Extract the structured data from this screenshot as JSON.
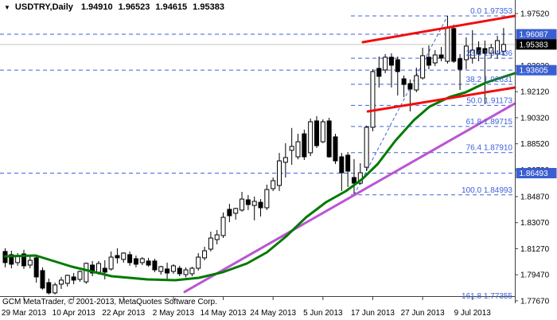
{
  "window": {
    "dropdown_icon": "▼",
    "symbol_label": "USDTRY,Daily",
    "ohlc_open": "1.94910",
    "ohlc_high": "1.96523",
    "ohlc_low": "1.94615",
    "ohlc_close": "1.95383"
  },
  "footer": {
    "copyright": "GCM MetaTrader, © 2001-2013, MetaQuotes Software Corp."
  },
  "colors": {
    "bull_body": "#FFFFFF",
    "bear_body": "#000000",
    "wick": "#000000",
    "ma_green": "#007A00",
    "trend_purple": "#BA55D3",
    "channel_red": "#F20D0D",
    "fib_blue": "#3E62D9",
    "badge_blue": "#3A5FD0",
    "badge_black": "#000000",
    "price_line_gray": "#C8C8C8",
    "axis_text": "#000000",
    "border": "#404040"
  },
  "chart_data": {
    "type": "candlestick",
    "symbol": "USDTRY",
    "timeframe": "Daily",
    "y_axis_ticks": [
      "1.97520",
      "1.95720",
      "1.93920",
      "1.92120",
      "1.90320",
      "1.88520",
      "1.86720",
      "1.84870",
      "1.83070",
      "1.81270",
      "1.79470",
      "1.77670"
    ],
    "x_axis_labels": [
      {
        "index": 3,
        "text": "29 Mar 2013"
      },
      {
        "index": 11,
        "text": "10 Apr 2013"
      },
      {
        "index": 19,
        "text": "22 Apr 2013"
      },
      {
        "index": 27,
        "text": "2 May 2013"
      },
      {
        "index": 35,
        "text": "14 May 2013"
      },
      {
        "index": 43,
        "text": "24 May 2013"
      },
      {
        "index": 51,
        "text": "5 Jun 2013"
      },
      {
        "index": 59,
        "text": "17 Jun 2013"
      },
      {
        "index": 67,
        "text": "27 Jun 2013"
      },
      {
        "index": 75,
        "text": "9 Jul 2013"
      }
    ],
    "bars": [
      [
        1.8108,
        1.813,
        1.7998,
        1.8031
      ],
      [
        1.8086,
        1.8113,
        1.7992,
        1.802
      ],
      [
        1.8031,
        1.8097,
        1.8009,
        1.8075
      ],
      [
        1.8091,
        1.8119,
        1.7987,
        1.8009
      ],
      [
        1.8014,
        1.8075,
        1.7992,
        1.8047
      ],
      [
        1.8064,
        1.8086,
        1.7893,
        1.7932
      ],
      [
        1.7976,
        1.7998,
        1.7844,
        1.7855
      ],
      [
        1.7893,
        1.7921,
        1.7811,
        1.7822
      ],
      [
        1.7822,
        1.7893,
        1.7811,
        1.7877
      ],
      [
        1.7882,
        1.7932,
        1.7849,
        1.791
      ],
      [
        1.7888,
        1.7948,
        1.7866,
        1.7943
      ],
      [
        1.7932,
        1.7959,
        1.7882,
        1.791
      ],
      [
        1.7915,
        1.7976,
        1.7899,
        1.797
      ],
      [
        1.7898,
        1.8031,
        1.7885,
        1.8026
      ],
      [
        1.8014,
        1.8042,
        1.7937,
        1.7959
      ],
      [
        1.7965,
        1.8042,
        1.7948,
        1.8025
      ],
      [
        1.7992,
        1.8047,
        1.7915,
        1.7965
      ],
      [
        1.7987,
        1.8108,
        1.7976,
        1.8069
      ],
      [
        1.808,
        1.813,
        1.8026,
        1.8064
      ],
      [
        1.8053,
        1.8102,
        1.8031,
        1.8097
      ],
      [
        1.8086,
        1.8108,
        1.8009,
        1.8031
      ],
      [
        1.8058,
        1.808,
        1.7998,
        1.802
      ],
      [
        1.8031,
        1.8069,
        1.8014,
        1.8058
      ],
      [
        1.8042,
        1.8064,
        1.8003,
        1.8014
      ],
      [
        1.8042,
        1.8058,
        1.7965,
        1.7981
      ],
      [
        1.797,
        1.8009,
        1.7948,
        1.8003
      ],
      [
        1.7987,
        1.8031,
        1.7915,
        1.7959
      ],
      [
        1.797,
        1.802,
        1.7954,
        1.8009
      ],
      [
        1.7992,
        1.8009,
        1.7937,
        1.7954
      ],
      [
        1.7948,
        1.7998,
        1.7929,
        1.7981
      ],
      [
        1.7954,
        1.8003,
        1.7937,
        1.7992
      ],
      [
        1.7992,
        1.8097,
        1.7976,
        1.8069
      ],
      [
        1.8064,
        1.8141,
        1.8047,
        1.8113
      ],
      [
        1.8124,
        1.8245,
        1.8108,
        1.8201
      ],
      [
        1.819,
        1.8256,
        1.8157,
        1.8223
      ],
      [
        1.8218,
        1.8377,
        1.8201,
        1.8344
      ],
      [
        1.8399,
        1.8437,
        1.8311,
        1.8355
      ],
      [
        1.8372,
        1.841,
        1.8328,
        1.8405
      ],
      [
        1.8394,
        1.852,
        1.8383,
        1.847
      ],
      [
        1.8465,
        1.8498,
        1.8394,
        1.8432
      ],
      [
        1.8426,
        1.8487,
        1.8323,
        1.8454
      ],
      [
        1.8448,
        1.847,
        1.835,
        1.841
      ],
      [
        1.841,
        1.857,
        1.8394,
        1.8536
      ],
      [
        1.8542,
        1.8619,
        1.8525,
        1.8597
      ],
      [
        1.8564,
        1.8789,
        1.8526,
        1.8734
      ],
      [
        1.8724,
        1.8856,
        1.8619,
        1.8757
      ],
      [
        1.8807,
        1.8961,
        1.8707,
        1.8834
      ],
      [
        1.8762,
        1.8921,
        1.8745,
        1.8866
      ],
      [
        1.8921,
        1.895,
        1.874,
        1.8762
      ],
      [
        1.879,
        1.9027,
        1.8767,
        1.9004
      ],
      [
        1.901,
        1.9043,
        1.8823,
        1.8839
      ],
      [
        1.8866,
        1.9021,
        1.8856,
        1.9004
      ],
      [
        1.901,
        1.9032,
        1.8756,
        1.8762
      ],
      [
        1.89,
        1.8921,
        1.8712,
        1.8734
      ],
      [
        1.8762,
        1.8789,
        1.8526,
        1.8652
      ],
      [
        1.8773,
        1.8795,
        1.8553,
        1.8663
      ],
      [
        1.8619,
        1.8746,
        1.84993,
        1.858
      ],
      [
        1.858,
        1.8718,
        1.857,
        1.8652
      ],
      [
        1.869,
        1.8977,
        1.8663,
        1.8966
      ],
      [
        1.8966,
        1.9367,
        1.8938,
        1.9351
      ],
      [
        1.9373,
        1.9455,
        1.9241,
        1.9318
      ],
      [
        1.9362,
        1.9472,
        1.934,
        1.945
      ],
      [
        1.945,
        1.9477,
        1.9241,
        1.9395
      ],
      [
        1.9433,
        1.9455,
        1.9186,
        1.9351
      ],
      [
        1.9301,
        1.9323,
        1.9175,
        1.9262
      ],
      [
        1.9268,
        1.9296,
        1.9076,
        1.923
      ],
      [
        1.9224,
        1.9378,
        1.9208,
        1.9323
      ],
      [
        1.9307,
        1.9516,
        1.9296,
        1.9461
      ],
      [
        1.945,
        1.9532,
        1.9367,
        1.9395
      ],
      [
        1.9411,
        1.9499,
        1.9389,
        1.9466
      ],
      [
        1.9466,
        1.9521,
        1.9422,
        1.9444
      ],
      [
        1.9422,
        1.97353,
        1.9406,
        1.9653
      ],
      [
        1.9648,
        1.9675,
        1.9411,
        1.9422
      ],
      [
        1.9439,
        1.9472,
        1.9224,
        1.9367
      ],
      [
        1.9433,
        1.9587,
        1.9367,
        1.9527
      ],
      [
        1.9444,
        1.9637,
        1.9406,
        1.9499
      ],
      [
        1.9516,
        1.956,
        1.9422,
        1.9472
      ],
      [
        1.951,
        1.9565,
        1.9126,
        1.9477
      ],
      [
        1.9477,
        1.9543,
        1.9444,
        1.9516
      ],
      [
        1.9472,
        1.9598,
        1.9439,
        1.9565
      ],
      [
        1.9491,
        1.96523,
        1.94615,
        1.95383
      ]
    ],
    "price_lines": [
      {
        "label": "1.96087",
        "price": 1.96087,
        "style": "dashed",
        "role": "horizontal-line"
      },
      {
        "label": "1.95383",
        "price": 1.95383,
        "style": "solid",
        "role": "bid-price-line"
      },
      {
        "label": "1.93605",
        "price": 1.93605,
        "style": "dashed",
        "role": "horizontal-line"
      },
      {
        "label": "1.86493",
        "price": 1.86493,
        "style": "dashed",
        "role": "horizontal-line"
      }
    ],
    "fibonacci": {
      "start_index": 55.5,
      "end_index": 81.8,
      "anchor": {
        "from_index": 56,
        "from_price": 1.84993,
        "to_index": 71,
        "to_price": 1.97353
      },
      "levels": [
        {
          "label": "0.0 1.97353",
          "price": 1.97353
        },
        {
          "label": "23.6 1.94436",
          "price": 1.94436
        },
        {
          "label": "38.2 1.92631",
          "price": 1.92631
        },
        {
          "label": "50.0 1.91173",
          "price": 1.91173
        },
        {
          "label": "61.8 1.89715",
          "price": 1.89715
        },
        {
          "label": "76.4 1.87910",
          "price": 1.8791
        },
        {
          "label": "100.0 1.84993",
          "price": 1.84993
        },
        {
          "label": "161.8 1.77355",
          "price": 1.77355
        }
      ]
    },
    "trendlines": [
      {
        "name": "channel-upper-line",
        "color": "red",
        "from": {
          "index": 57.4,
          "price": 1.9554
        },
        "to": {
          "index": 81.8,
          "price": 1.97355
        }
      },
      {
        "name": "channel-lower-line",
        "color": "red",
        "from": {
          "index": 58.2,
          "price": 1.90755
        },
        "to": {
          "index": 81.8,
          "price": 1.92405
        }
      },
      {
        "name": "support-trendline",
        "color": "purple",
        "from": {
          "index": 28.8,
          "price": 1.7829
        },
        "to": {
          "index": 81.8,
          "price": 1.91305
        }
      }
    ],
    "moving_average": {
      "color": "green",
      "points": [
        [
          0,
          1.80745
        ],
        [
          4.9,
          1.808
        ],
        [
          10.7,
          1.8003
        ],
        [
          17.1,
          1.7937
        ],
        [
          22.8,
          1.7915
        ],
        [
          27.3,
          1.79095
        ],
        [
          31.1,
          1.7926
        ],
        [
          34.9,
          1.79645
        ],
        [
          38.8,
          1.8025
        ],
        [
          42.0,
          1.8102
        ],
        [
          45.1,
          1.8212
        ],
        [
          48.3,
          1.8344
        ],
        [
          51.5,
          1.84485
        ],
        [
          54.7,
          1.85255
        ],
        [
          57.3,
          1.8608
        ],
        [
          59.8,
          1.87125
        ],
        [
          62.6,
          1.8872
        ],
        [
          65.6,
          1.9015
        ],
        [
          68.1,
          1.91085
        ],
        [
          71.3,
          1.91745
        ],
        [
          73.9,
          1.92075
        ],
        [
          77.1,
          1.92735
        ],
        [
          81.8,
          1.93395
        ]
      ]
    }
  }
}
